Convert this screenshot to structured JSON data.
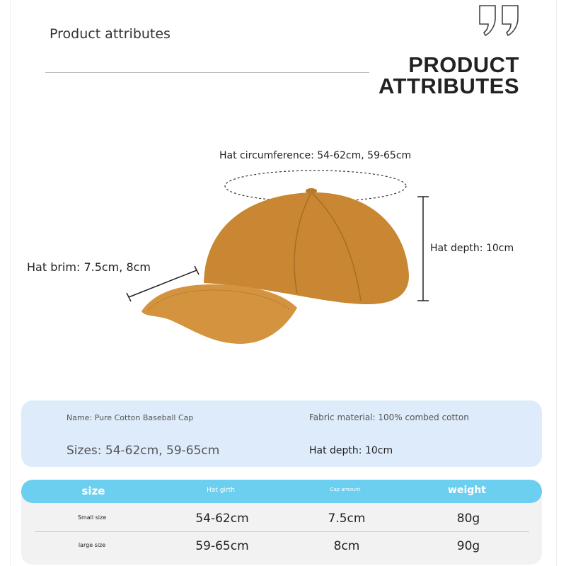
{
  "header": {
    "subtitle": "Product attributes",
    "title_line1": "PRODUCT",
    "title_line2": "ATTRIBUTES",
    "quote_icon": "closing-quote-icon"
  },
  "diagram": {
    "circumference": "Hat circumference: 54-62cm, 59-65cm",
    "depth": "Hat depth: 10cm",
    "brim": "Hat brim: 7.5cm, 8cm",
    "cap_color": "#c98733"
  },
  "info": {
    "name": "Name: Pure Cotton Baseball Cap",
    "fabric": "Fabric material: 100% combed cotton",
    "sizes": "Sizes: 54-62cm, 59-65cm",
    "depth": "Hat depth: 10cm"
  },
  "table": {
    "headers": [
      "size",
      "Hat girth",
      "Cap amount",
      "weight"
    ],
    "rows": [
      [
        "Small size",
        "54-62cm",
        "7.5cm",
        "80g"
      ],
      [
        "large size",
        "59-65cm",
        "8cm",
        "90g"
      ]
    ],
    "header_color": "#6dcff0"
  }
}
